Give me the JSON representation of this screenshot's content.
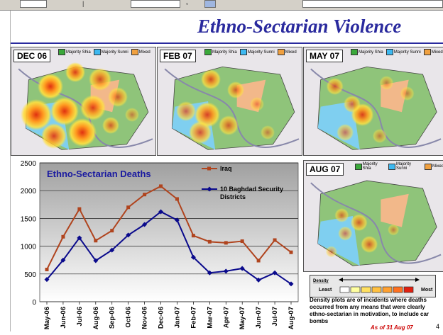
{
  "slide": {
    "title": "Ethno-Sectarian Violence",
    "as_of": "As of 31 Aug 07",
    "page_number": "4"
  },
  "legend": {
    "shia": "Majority Shia",
    "sunni": "Majority Sunni",
    "mixed": "Mixed",
    "colors": {
      "shia": "#3aa83a",
      "sunni": "#3db8f0",
      "mixed": "#f0a040"
    }
  },
  "maps": [
    {
      "label": "DEC 06"
    },
    {
      "label": "FEB 07"
    },
    {
      "label": "MAY 07"
    },
    {
      "label": "AUG 07"
    }
  ],
  "density": {
    "title": "Density",
    "least": "Least",
    "most": "Most",
    "colors": [
      "#ffffff",
      "#ffffa0",
      "#ffe060",
      "#ffc040",
      "#ffa030",
      "#ff7020",
      "#e02010"
    ],
    "caption": "Density plots are of incidents where deaths occurred from any means that were clearly ethno-sectarian in motivation, to include car bombs"
  },
  "chart_data": {
    "type": "line",
    "title": "Ethno-Sectarian Deaths",
    "categories": [
      "May-06",
      "Jun-06",
      "Jul-06",
      "Aug-06",
      "Sep-06",
      "Oct-06",
      "Nov-06",
      "Dec-06",
      "Jan-07",
      "Feb-07",
      "Mar-07",
      "Apr-07",
      "May-07",
      "Jun-07",
      "Jul-07",
      "Aug-07"
    ],
    "series": [
      {
        "name": "Iraq",
        "color": "#b0441e",
        "values": [
          580,
          1170,
          1670,
          1100,
          1280,
          1700,
          1930,
          2080,
          1850,
          1190,
          1080,
          1060,
          1090,
          740,
          1110,
          890
        ]
      },
      {
        "name": "10 Baghdad Security Districts",
        "color": "#0a0a8c",
        "values": [
          400,
          750,
          1150,
          740,
          930,
          1200,
          1390,
          1620,
          1470,
          800,
          520,
          550,
          600,
          390,
          520,
          320
        ]
      }
    ],
    "ylim": [
      0,
      2500
    ],
    "yticks": [
      0,
      500,
      1000,
      1500,
      2000,
      2500
    ],
    "grid": true
  }
}
